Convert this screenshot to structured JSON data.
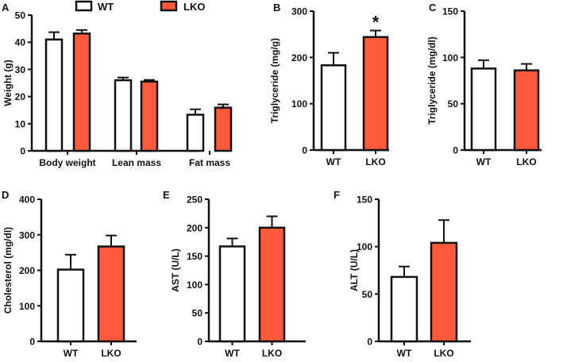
{
  "legend": {
    "wt": "WT",
    "lko": "LKO"
  },
  "colors": {
    "wt": "#ffffff",
    "lko": "#ff5a3c",
    "stroke": "#111111"
  },
  "chart_data": [
    {
      "panel": "A",
      "type": "bar",
      "ylabel": "Weight (g)",
      "ylim": [
        0,
        50
      ],
      "yticks": [
        0,
        10,
        20,
        30,
        40,
        50
      ],
      "categories": [
        "Body weight",
        "Lean mass",
        "Fat mass"
      ],
      "series": [
        {
          "name": "WT",
          "values": [
            41,
            26,
            13.3
          ],
          "errors": [
            2.7,
            1,
            2
          ]
        },
        {
          "name": "LKO",
          "values": [
            43.2,
            25.5,
            15.9
          ],
          "errors": [
            1.3,
            0.6,
            1.2
          ]
        }
      ],
      "legend": "top"
    },
    {
      "panel": "B",
      "type": "bar",
      "ylabel": "Triglyceride (mg/g)",
      "ylim": [
        0,
        300
      ],
      "yticks": [
        0,
        100,
        200,
        300
      ],
      "categories": [
        "WT",
        "LKO"
      ],
      "values": [
        183,
        244
      ],
      "errors": [
        27,
        14
      ],
      "annotations": [
        "",
        "*"
      ]
    },
    {
      "panel": "C",
      "type": "bar",
      "ylabel": "Triglyceride (mg/dl)",
      "ylim": [
        0,
        150
      ],
      "yticks": [
        0,
        50,
        100,
        150
      ],
      "categories": [
        "WT",
        "LKO"
      ],
      "values": [
        88,
        86
      ],
      "errors": [
        9,
        7
      ],
      "annotations": [
        "",
        ""
      ]
    },
    {
      "panel": "D",
      "type": "bar",
      "ylabel": "Cholesterol (mg/dl)",
      "ylim": [
        0,
        400
      ],
      "yticks": [
        0,
        100,
        200,
        300,
        400
      ],
      "categories": [
        "WT",
        "LKO"
      ],
      "values": [
        202,
        267
      ],
      "errors": [
        42,
        31
      ],
      "annotations": [
        "",
        ""
      ]
    },
    {
      "panel": "E",
      "type": "bar",
      "ylabel": "AST  (U/L)",
      "ylim": [
        0,
        250
      ],
      "yticks": [
        0,
        50,
        100,
        150,
        200,
        250
      ],
      "categories": [
        "WT",
        "LKO"
      ],
      "values": [
        167,
        200
      ],
      "errors": [
        14,
        20
      ],
      "annotations": [
        "",
        ""
      ]
    },
    {
      "panel": "F",
      "type": "bar",
      "ylabel": "ALT (U/L)",
      "ylim": [
        0,
        150
      ],
      "yticks": [
        0,
        50,
        100,
        150
      ],
      "categories": [
        "WT",
        "LKO"
      ],
      "values": [
        68,
        104
      ],
      "errors": [
        11,
        24
      ],
      "annotations": [
        "",
        ""
      ]
    }
  ]
}
